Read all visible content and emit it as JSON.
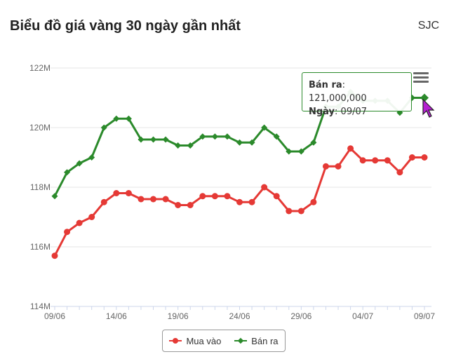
{
  "header": {
    "title": "Biểu đồ giá vàng 30 ngày gần nhất",
    "brand": "SJC"
  },
  "menu": {
    "icon": "hamburger-icon"
  },
  "tooltip": {
    "label1": "Bán ra",
    "value1": ": 121,000,000",
    "label2": "Ngày",
    "value2": ": 09/07"
  },
  "legend": [
    {
      "name": "Mua vào",
      "color": "#e53935",
      "marker": "circle"
    },
    {
      "name": "Bán ra",
      "color": "#2b8a2b",
      "marker": "diamond"
    }
  ],
  "chart_data": {
    "type": "line",
    "x": [
      "09/06",
      "10/06",
      "11/06",
      "12/06",
      "13/06",
      "14/06",
      "15/06",
      "16/06",
      "17/06",
      "18/06",
      "19/06",
      "20/06",
      "21/06",
      "22/06",
      "23/06",
      "24/06",
      "25/06",
      "26/06",
      "27/06",
      "28/06",
      "29/06",
      "30/06",
      "01/07",
      "02/07",
      "03/07",
      "04/07",
      "05/07",
      "06/07",
      "07/07",
      "08/07",
      "09/07"
    ],
    "xticks": [
      "09/06",
      "14/06",
      "19/06",
      "24/06",
      "29/06",
      "04/07",
      "09/07"
    ],
    "yticks": [
      "114M",
      "116M",
      "118M",
      "120M",
      "122M"
    ],
    "ylim": [
      114000000,
      122000000
    ],
    "grid": true,
    "legend_position": "bottom-center",
    "series": [
      {
        "name": "Mua vào",
        "color": "#e53935",
        "values": [
          115700000,
          116500000,
          116800000,
          117000000,
          117500000,
          117800000,
          117800000,
          117600000,
          117600000,
          117600000,
          117400000,
          117400000,
          117700000,
          117700000,
          117700000,
          117500000,
          117500000,
          118000000,
          117700000,
          117200000,
          117200000,
          117500000,
          118700000,
          118700000,
          119300000,
          118900000,
          118900000,
          118900000,
          118500000,
          119000000,
          119000000
        ]
      },
      {
        "name": "Bán ra",
        "color": "#2b8a2b",
        "values": [
          117700000,
          118500000,
          118800000,
          119000000,
          120000000,
          120300000,
          120300000,
          119600000,
          119600000,
          119600000,
          119400000,
          119400000,
          119700000,
          119700000,
          119700000,
          119500000,
          119500000,
          120000000,
          119700000,
          119200000,
          119200000,
          119500000,
          120700000,
          120700000,
          121200000,
          120900000,
          120900000,
          120900000,
          120500000,
          121000000,
          121000000
        ]
      }
    ],
    "highlight": {
      "series": "Bán ra",
      "index": 30
    }
  }
}
